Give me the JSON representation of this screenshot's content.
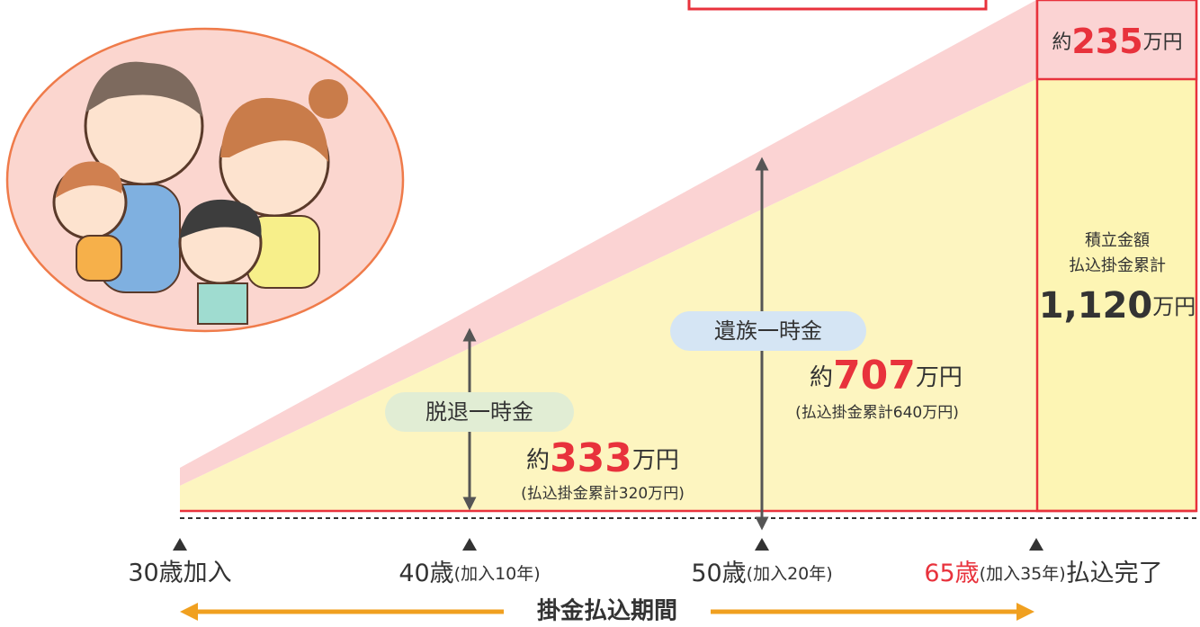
{
  "total": {
    "prefix": "約",
    "amount": "235",
    "unit": "万円",
    "label1": "積立金額",
    "label2": "払込掛金累計",
    "sum": "1,120",
    "sum_unit": "万円"
  },
  "withdrawal": {
    "pill": "脱退一時金",
    "prefix": "約",
    "amount": "333",
    "unit": "万円",
    "note": "(払込掛金累計320万円)"
  },
  "survivor": {
    "pill": "遺族一時金",
    "prefix": "約",
    "amount": "707",
    "unit": "万円",
    "note": "(払込掛金累計640万円)"
  },
  "timeline": {
    "start": "30歳加入",
    "age40": "40歳",
    "age40_note": "(加入10年)",
    "age50": "50歳",
    "age50_note": "(加入20年)",
    "age65": "65歳",
    "age65_note": "(加入35年)",
    "end": "払込完了",
    "period": "掛金払込期間"
  }
}
